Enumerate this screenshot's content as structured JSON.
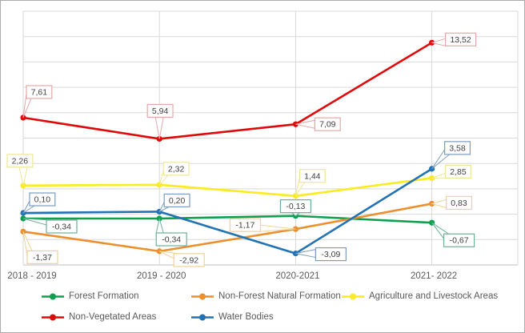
{
  "figure": {
    "background": "#FFFFFF",
    "border_color": "#ACACAC"
  },
  "chart_data": {
    "type": "line",
    "title": "",
    "xlabel": "",
    "ylabel": "",
    "categories": [
      "2018 - 2019",
      "2019 - 2020",
      "2020-2021",
      "2021- 2022"
    ],
    "series": [
      {
        "name": "Forest Formation",
        "color": "#0EA04F",
        "label_border": "#6FAE9B",
        "values": [
          -0.34,
          -0.34,
          -0.13,
          -0.67
        ],
        "labels": [
          "-0,34",
          "-0,34",
          "-0,13",
          "-0,67"
        ],
        "label_offsets": [
          [
            29,
            2
          ],
          [
            -4,
            18
          ],
          [
            -19,
            -20
          ],
          [
            15,
            14
          ]
        ]
      },
      {
        "name": "Non-Forest Natural Formation",
        "color": "#EC8F2C",
        "label_border": "#EFD395",
        "values": [
          -1.37,
          -2.92,
          -1.17,
          0.83
        ],
        "labels": [
          "-1,37",
          "-2,92",
          "-1,17",
          "0,83"
        ],
        "label_offsets": [
          [
            5,
            24
          ],
          [
            18,
            3
          ],
          [
            -82,
            -13
          ],
          [
            18,
            -9
          ]
        ]
      },
      {
        "name": "Agriculture and Livestock Areas",
        "color": "#FBEB1F",
        "label_border": "#EFE795",
        "values": [
          2.26,
          2.32,
          1.44,
          2.85
        ],
        "labels": [
          "2,26",
          "2,32",
          "1,44",
          "2,85"
        ],
        "label_offsets": [
          [
            -20,
            -39
          ],
          [
            5,
            -28
          ],
          [
            5,
            -33
          ],
          [
            17,
            -16
          ]
        ]
      },
      {
        "name": "Non-Vegetated Areas",
        "color": "#E00909",
        "label_border": "#E2A9A9",
        "values": [
          7.61,
          5.94,
          7.09,
          13.52
        ],
        "labels": [
          "7,61",
          "5,94",
          "7,09",
          "13,52"
        ],
        "label_offsets": [
          [
            4,
            -40
          ],
          [
            -15,
            -43
          ],
          [
            24,
            -8
          ],
          [
            17,
            -12
          ]
        ]
      },
      {
        "name": "Water Bodies",
        "color": "#2173B6",
        "label_border": "#7B9DBE",
        "values": [
          0.1,
          0.2,
          -3.09,
          3.58
        ],
        "labels": [
          "0,10",
          "0,20",
          "-3,09",
          "3,58"
        ],
        "label_offsets": [
          [
            8,
            -25
          ],
          [
            6,
            -22
          ],
          [
            25,
            -7
          ],
          [
            16,
            -34
          ]
        ]
      }
    ],
    "ylim": [
      -4,
      16
    ],
    "y_major_unit": 2,
    "grid": "on",
    "gridline_color": "#D9D9D9",
    "axis_line_color": "#BFBFBF",
    "tick_label_color": "#595959",
    "data_label_text_color": "#404040",
    "legend": {
      "position": "bottom",
      "rows": [
        [
          0,
          1,
          2
        ],
        [
          3,
          4
        ]
      ]
    }
  }
}
